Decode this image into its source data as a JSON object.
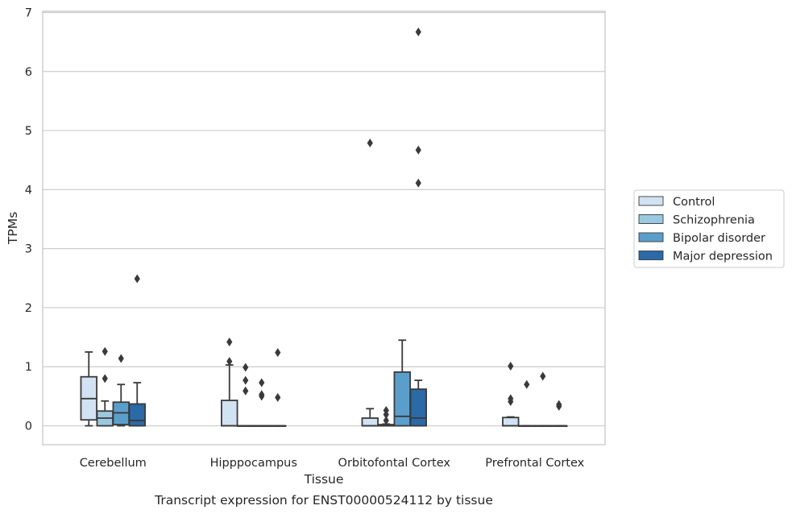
{
  "chart_data": {
    "type": "box",
    "xlabel": "Tissue",
    "ylabel": "TPMs",
    "caption": "Transcript expression for ENST00000524112 by tissue",
    "ylim": [
      -0.32,
      7.02
    ],
    "yticks": [
      0,
      1,
      2,
      3,
      4,
      5,
      6,
      7
    ],
    "grid": "horizontal",
    "legend_position": "right",
    "categories": [
      "Cerebellum",
      "Hipppocampus",
      "Orbitofontal Cortex",
      "Prefrontal Cortex"
    ],
    "series": [
      {
        "name": "Control",
        "color": "#d1e2f2",
        "boxes": [
          {
            "whislo": 0.0,
            "q1": 0.1,
            "med": 0.46,
            "q3": 0.83,
            "whishi": 1.25,
            "fliers": []
          },
          {
            "whislo": 0.0,
            "q1": 0.0,
            "med": 0.0,
            "q3": 0.43,
            "whishi": 1.03,
            "fliers": [
              1.42,
              1.09
            ]
          },
          {
            "whislo": 0.0,
            "q1": 0.0,
            "med": 0.0,
            "q3": 0.13,
            "whishi": 0.29,
            "fliers": [
              4.79
            ]
          },
          {
            "whislo": 0.0,
            "q1": 0.0,
            "med": 0.0,
            "q3": 0.14,
            "whishi": 0.15,
            "fliers": [
              1.01,
              0.46,
              0.41
            ]
          }
        ]
      },
      {
        "name": "Schizophrenia",
        "color": "#9ac8e0",
        "boxes": [
          {
            "whislo": 0.0,
            "q1": 0.0,
            "med": 0.13,
            "q3": 0.25,
            "whishi": 0.42,
            "fliers": [
              1.26,
              0.8
            ]
          },
          {
            "whislo": 0.0,
            "q1": 0.0,
            "med": 0.0,
            "q3": 0.0,
            "whishi": 0.0,
            "fliers": [
              0.99,
              0.77,
              0.59
            ]
          },
          {
            "whislo": 0.0,
            "q1": 0.0,
            "med": 0.0,
            "q3": 0.02,
            "whishi": 0.03,
            "fliers": [
              0.26,
              0.19,
              0.09
            ]
          },
          {
            "whislo": 0.0,
            "q1": 0.0,
            "med": 0.0,
            "q3": 0.0,
            "whishi": 0.0,
            "fliers": [
              0.7
            ]
          }
        ]
      },
      {
        "name": "Bipolar disorder",
        "color": "#5a9fcc",
        "boxes": [
          {
            "whislo": 0.0,
            "q1": 0.02,
            "med": 0.22,
            "q3": 0.4,
            "whishi": 0.7,
            "fliers": [
              1.14
            ]
          },
          {
            "whislo": 0.0,
            "q1": 0.0,
            "med": 0.0,
            "q3": 0.0,
            "whishi": 0.0,
            "fliers": [
              0.73,
              0.53,
              0.5
            ]
          },
          {
            "whislo": 0.0,
            "q1": 0.0,
            "med": 0.16,
            "q3": 0.91,
            "whishi": 1.45,
            "fliers": []
          },
          {
            "whislo": 0.0,
            "q1": 0.0,
            "med": 0.0,
            "q3": 0.0,
            "whishi": 0.0,
            "fliers": [
              0.84
            ]
          }
        ]
      },
      {
        "name": "Major depression",
        "color": "#2a6aa8",
        "boxes": [
          {
            "whislo": 0.0,
            "q1": 0.0,
            "med": 0.09,
            "q3": 0.37,
            "whishi": 0.73,
            "fliers": [
              2.49
            ]
          },
          {
            "whislo": 0.0,
            "q1": 0.0,
            "med": 0.0,
            "q3": 0.0,
            "whishi": 0.0,
            "fliers": [
              1.24,
              0.48
            ]
          },
          {
            "whislo": 0.0,
            "q1": 0.0,
            "med": 0.13,
            "q3": 0.62,
            "whishi": 0.77,
            "fliers": [
              6.67,
              4.67,
              4.11
            ]
          },
          {
            "whislo": 0.0,
            "q1": 0.0,
            "med": 0.0,
            "q3": 0.0,
            "whishi": 0.0,
            "fliers": [
              0.36,
              0.33
            ]
          }
        ]
      }
    ]
  }
}
